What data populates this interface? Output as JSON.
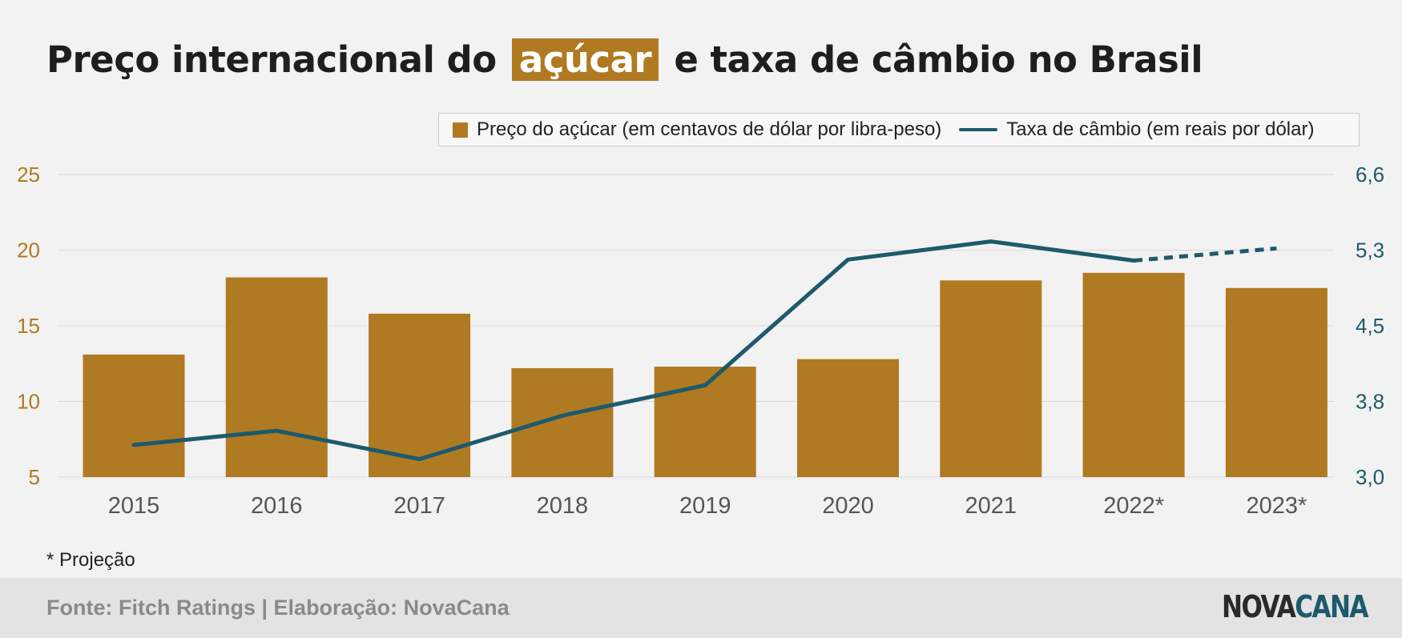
{
  "title": {
    "before": "Preço internacional do",
    "highlight": "açúcar",
    "after": "e taxa de câmbio no Brasil"
  },
  "legend": {
    "bar_label": "Preço do açúcar (em centavos de dólar por libra-peso)",
    "line_label": "Taxa de câmbio (em reais por dólar)"
  },
  "note": "* Projeção",
  "source": "Fonte: Fitch Ratings | Elaboração: NovaCana",
  "logo": {
    "part1": "NOVA",
    "part2": "CANA"
  },
  "colors": {
    "bar": "#b07a22",
    "line": "#1d5a6b",
    "grid": "#d9d9d9",
    "left_axis": "#b07a22",
    "right_axis": "#1d5a6b"
  },
  "chart_data": {
    "type": "bar",
    "categories": [
      "2015",
      "2016",
      "2017",
      "2018",
      "2019",
      "2020",
      "2021",
      "2022*",
      "2023*"
    ],
    "series": [
      {
        "name": "Preço do açúcar (em centavos de dólar por libra-peso)",
        "type": "bar",
        "axis": "left",
        "values": [
          13.1,
          18.2,
          15.8,
          12.2,
          12.3,
          12.8,
          18.0,
          18.5,
          17.5
        ]
      },
      {
        "name": "Taxa de câmbio (em reais por dólar)",
        "type": "line",
        "axis": "right",
        "values": [
          3.34,
          3.49,
          3.19,
          3.65,
          3.95,
          5.2,
          5.45,
          5.19,
          5.33
        ],
        "projected_from_index": 7
      }
    ],
    "left_axis": {
      "ticks": [
        "5",
        "10",
        "15",
        "20",
        "25"
      ],
      "ylim": [
        5,
        25
      ]
    },
    "right_axis": {
      "ticks": [
        "3,0",
        "3,8",
        "4,5",
        "5,3",
        "6,6"
      ]
    },
    "grid": true,
    "legend_position": "top-right"
  }
}
